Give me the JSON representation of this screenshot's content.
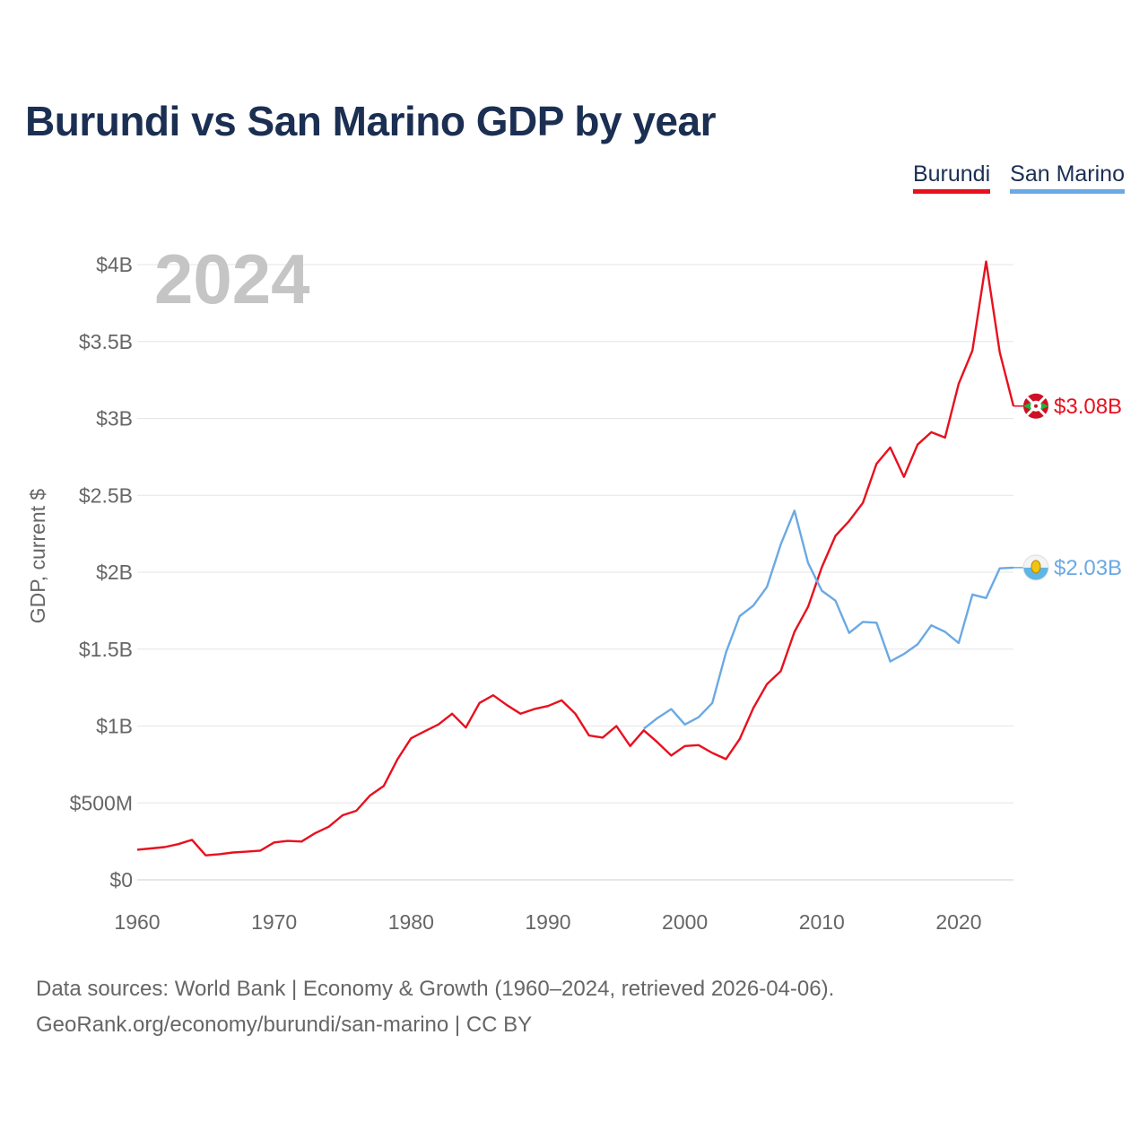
{
  "title": "Burundi vs San Marino GDP by year",
  "legend": [
    "Burundi",
    "San Marino"
  ],
  "year_label": "2024",
  "footer": {
    "line1": "Data sources: World Bank | Economy & Growth (1960–2024, retrieved 2026-04-06).",
    "line2": "GeoRank.org/economy/burundi/san-marino | CC BY"
  },
  "colors": {
    "burundi": "#e8101e",
    "san_marino": "#6aa9e4",
    "title": "#1b2f52",
    "grid": "#e6e6e6",
    "axis_text": "#666666"
  },
  "chart_data": {
    "type": "line",
    "title": "Burundi vs San Marino GDP by year",
    "xlabel": "",
    "ylabel": "GDP, current $",
    "xlim": [
      1960,
      2024
    ],
    "ylim": [
      0,
      4000000000
    ],
    "x_ticks": [
      1960,
      1970,
      1980,
      1990,
      2000,
      2010,
      2020
    ],
    "y_ticks": [
      {
        "value": 0,
        "label": "$0"
      },
      {
        "value": 500000000,
        "label": "$500M"
      },
      {
        "value": 1000000000,
        "label": "$1B"
      },
      {
        "value": 1500000000,
        "label": "$1.5B"
      },
      {
        "value": 2000000000,
        "label": "$2B"
      },
      {
        "value": 2500000000,
        "label": "$2.5B"
      },
      {
        "value": 3000000000,
        "label": "$3B"
      },
      {
        "value": 3500000000,
        "label": "$3.5B"
      },
      {
        "value": 4000000000,
        "label": "$4B"
      }
    ],
    "series": [
      {
        "name": "Burundi",
        "color": "#e8101e",
        "end_label": "$3.08B",
        "flag": "burundi-flag-icon",
        "x": [
          1960,
          1961,
          1962,
          1963,
          1964,
          1965,
          1966,
          1967,
          1968,
          1969,
          1970,
          1971,
          1972,
          1973,
          1974,
          1975,
          1976,
          1977,
          1978,
          1979,
          1980,
          1981,
          1982,
          1983,
          1984,
          1985,
          1986,
          1987,
          1988,
          1989,
          1990,
          1991,
          1992,
          1993,
          1994,
          1995,
          1996,
          1997,
          1998,
          1999,
          2000,
          2001,
          2002,
          2003,
          2004,
          2005,
          2006,
          2007,
          2008,
          2009,
          2010,
          2011,
          2012,
          2013,
          2014,
          2015,
          2016,
          2017,
          2018,
          2019,
          2020,
          2021,
          2022,
          2023,
          2024
        ],
        "values": [
          196000000,
          204000000,
          213000000,
          232000000,
          260000000,
          159000000,
          167000000,
          178000000,
          183000000,
          190000000,
          243000000,
          253000000,
          249000000,
          304000000,
          346000000,
          420000000,
          449000000,
          548000000,
          610000000,
          782000000,
          920000000,
          966000000,
          1010000000,
          1080000000,
          990000000,
          1150000000,
          1200000000,
          1136000000,
          1080000000,
          1110000000,
          1130000000,
          1167000000,
          1080000000,
          938000000,
          925000000,
          1000000000,
          870000000,
          972000000,
          894000000,
          808000000,
          870000000,
          876000000,
          825000000,
          785000000,
          915000000,
          1117000000,
          1273000000,
          1356000000,
          1612000000,
          1775000000,
          2032000000,
          2236000000,
          2333000000,
          2451000000,
          2705000000,
          2811000000,
          2620000000,
          2830000000,
          2910000000,
          2875000000,
          3225000000,
          3440000000,
          4020000000,
          3430000000,
          3080000000
        ]
      },
      {
        "name": "San Marino",
        "color": "#6aa9e4",
        "end_label": "$2.03B",
        "flag": "san-marino-flag-icon",
        "x": [
          1997,
          1998,
          1999,
          2000,
          2001,
          2002,
          2003,
          2004,
          2005,
          2006,
          2007,
          2008,
          2009,
          2010,
          2011,
          2012,
          2013,
          2014,
          2015,
          2016,
          2017,
          2018,
          2019,
          2020,
          2021,
          2022,
          2023,
          2024
        ],
        "values": [
          982000000,
          1052000000,
          1110000000,
          1010000000,
          1057000000,
          1150000000,
          1477000000,
          1714000000,
          1783000000,
          1905000000,
          2180000000,
          2400000000,
          2060000000,
          1880000000,
          1815000000,
          1605000000,
          1677000000,
          1672000000,
          1420000000,
          1468000000,
          1531000000,
          1655000000,
          1612000000,
          1540000000,
          1855000000,
          1832000000,
          2025000000,
          2030000000
        ]
      }
    ]
  }
}
